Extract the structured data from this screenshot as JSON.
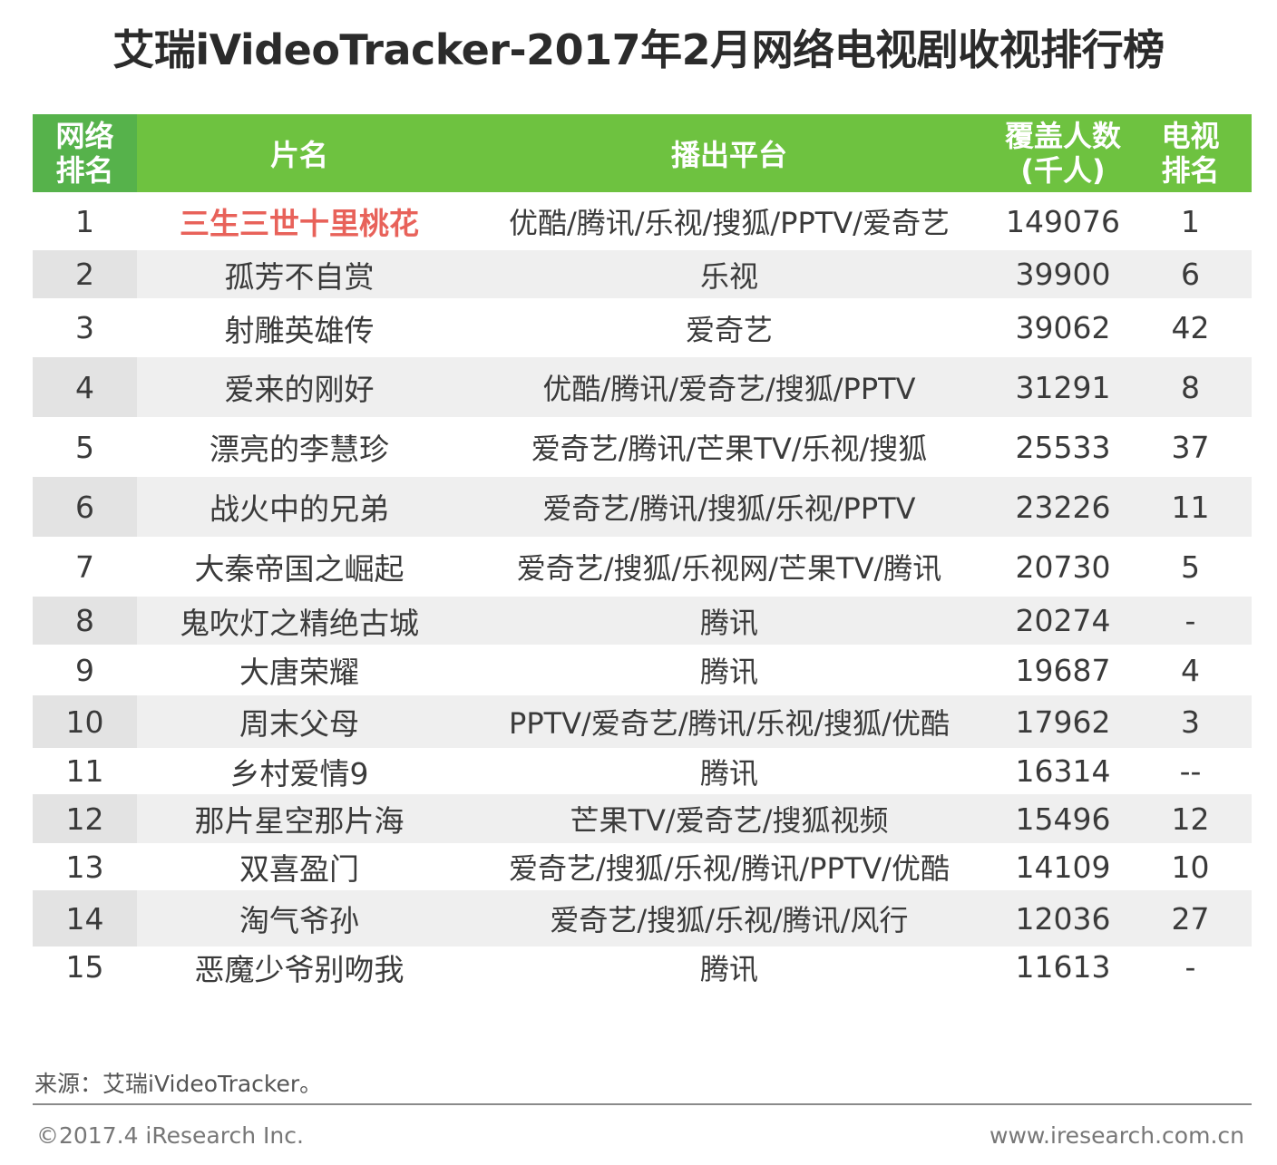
{
  "title": "艾瑞iVideoTracker-2017年2月网络电视剧收视排行榜",
  "chart_data": {
    "type": "table",
    "title": "艾瑞iVideoTracker-2017年2月网络电视剧收视排行榜",
    "columns": [
      {
        "line1": "网络",
        "line2": "排名"
      },
      {
        "line1": "片名"
      },
      {
        "line1": "播出平台"
      },
      {
        "line1": "覆盖人数",
        "line2": "(千人)"
      },
      {
        "line1": "电视",
        "line2": "排名"
      }
    ],
    "rows": [
      {
        "rank": "1",
        "name": "三生三世十里桃花",
        "platform": "优酷/腾讯/乐视/搜狐/PPTV/爱奇艺",
        "coverage": "149076",
        "tv_rank": "1",
        "highlight": true
      },
      {
        "rank": "2",
        "name": "孤芳不自赏",
        "platform": "乐视",
        "coverage": "39900",
        "tv_rank": "6"
      },
      {
        "rank": "3",
        "name": "射雕英雄传",
        "platform": "爱奇艺",
        "coverage": "39062",
        "tv_rank": "42"
      },
      {
        "rank": "4",
        "name": "爱来的刚好",
        "platform": "优酷/腾讯/爱奇艺/搜狐/PPTV",
        "coverage": "31291",
        "tv_rank": "8"
      },
      {
        "rank": "5",
        "name": "漂亮的李慧珍",
        "platform": "爱奇艺/腾讯/芒果TV/乐视/搜狐",
        "coverage": "25533",
        "tv_rank": "37"
      },
      {
        "rank": "6",
        "name": "战火中的兄弟",
        "platform": "爱奇艺/腾讯/搜狐/乐视/PPTV",
        "coverage": "23226",
        "tv_rank": "11"
      },
      {
        "rank": "7",
        "name": "大秦帝国之崛起",
        "platform": "爱奇艺/搜狐/乐视网/芒果TV/腾讯",
        "coverage": "20730",
        "tv_rank": "5"
      },
      {
        "rank": "8",
        "name": "鬼吹灯之精绝古城",
        "platform": "腾讯",
        "coverage": "20274",
        "tv_rank": "-"
      },
      {
        "rank": "9",
        "name": "大唐荣耀",
        "platform": "腾讯",
        "coverage": "19687",
        "tv_rank": "4"
      },
      {
        "rank": "10",
        "name": "周末父母",
        "platform": "PPTV/爱奇艺/腾讯/乐视/搜狐/优酷",
        "coverage": "17962",
        "tv_rank": "3"
      },
      {
        "rank": "11",
        "name": "乡村爱情9",
        "platform": "腾讯",
        "coverage": "16314",
        "tv_rank": "--"
      },
      {
        "rank": "12",
        "name": "那片星空那片海",
        "platform": "芒果TV/爱奇艺/搜狐视频",
        "coverage": "15496",
        "tv_rank": "12"
      },
      {
        "rank": "13",
        "name": "双喜盈门",
        "platform": "爱奇艺/搜狐/乐视/腾讯/PPTV/优酷",
        "coverage": "14109",
        "tv_rank": "10"
      },
      {
        "rank": "14",
        "name": "淘气爷孙",
        "platform": "爱奇艺/搜狐/乐视/腾讯/风行",
        "coverage": "12036",
        "tv_rank": "27"
      },
      {
        "rank": "15",
        "name": "恶魔少爷别吻我",
        "platform": "腾讯",
        "coverage": "11613",
        "tv_rank": "-"
      }
    ]
  },
  "footer": {
    "source": "来源：艾瑞iVideoTracker。",
    "copyright": "©2017.4 iResearch Inc.",
    "website": "www.iresearch.com.cn"
  },
  "colors": {
    "header_green": "#6ec240",
    "header_rank_green": "#56b24b",
    "highlight_red": "#e8625a",
    "row_alt": "#efefef"
  }
}
